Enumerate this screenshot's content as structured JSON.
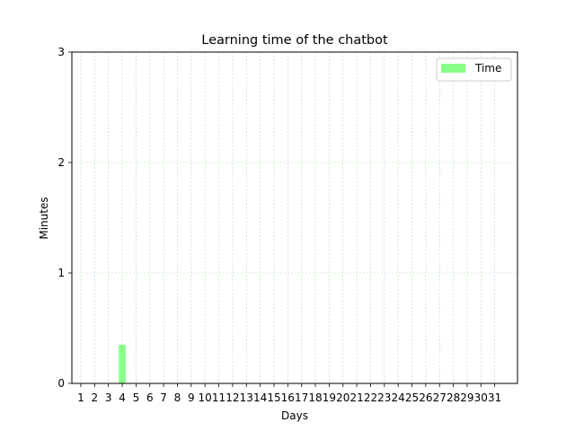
{
  "chart_data": {
    "type": "bar",
    "title": "Learning time of the chatbot",
    "xlabel": "Days",
    "ylabel": "Minutes",
    "categories": [
      "1",
      "2",
      "3",
      "4",
      "5",
      "6",
      "7",
      "8",
      "9",
      "10",
      "11",
      "12",
      "13",
      "14",
      "15",
      "16",
      "17",
      "18",
      "19",
      "20",
      "21",
      "22",
      "23",
      "24",
      "25",
      "26",
      "27",
      "28",
      "29",
      "30",
      "31"
    ],
    "series": [
      {
        "name": "Time",
        "color": "#88ff88",
        "values": [
          0,
          0,
          0,
          0.35,
          0,
          0,
          0,
          0,
          0,
          0,
          0,
          0,
          0,
          0,
          0,
          0,
          0,
          0,
          0,
          0,
          0,
          0,
          0,
          0,
          0,
          0,
          0,
          0,
          0,
          0,
          0
        ]
      }
    ],
    "ylim": [
      0,
      3
    ],
    "yticks": [
      0,
      1,
      2,
      3
    ],
    "grid": true,
    "grid_color": "#8fcf8f",
    "legend_position": "top-right"
  }
}
